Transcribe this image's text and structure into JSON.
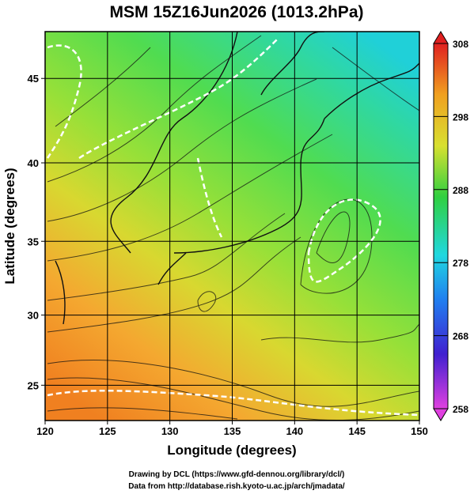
{
  "title": "MSM 15Z16Jun2026 (1013.2hPa)",
  "x_axis": {
    "label": "Longitude (degrees)",
    "lim": [
      120,
      150
    ],
    "ticks": [
      120,
      125,
      130,
      135,
      140,
      145,
      150
    ]
  },
  "y_axis": {
    "label": "Latitude  (degrees)",
    "projection": "mercator",
    "lim": [
      22.4,
      47.6
    ],
    "ticks": [
      25,
      30,
      35,
      40,
      45
    ]
  },
  "colorbar": {
    "lim": [
      258,
      308
    ],
    "ticks": [
      258,
      268,
      278,
      288,
      298,
      308
    ]
  },
  "footer": [
    "Drawing by DCL (https://www.gfd-dennou.org/library/dcl/)",
    "Data from http://database.rish.kyoto-u.ac.jp/arch/jmadata/"
  ]
}
